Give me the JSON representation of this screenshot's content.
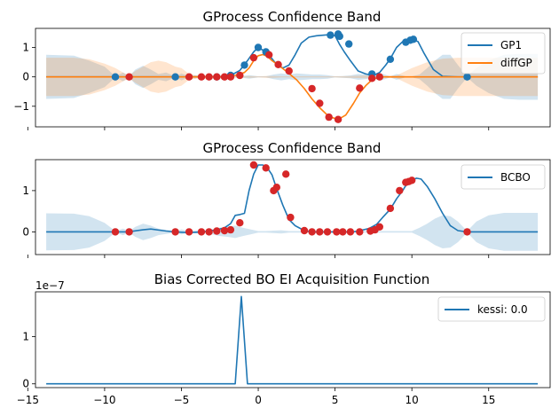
{
  "chart_data": [
    {
      "type": "line",
      "title": "GProcess Confidence Band",
      "xlim": [
        -14.5,
        19.0
      ],
      "ylim": [
        -1.7,
        1.65
      ],
      "yticks": [
        -1,
        0,
        1
      ],
      "yticklabels": [
        "−1",
        "0",
        "1"
      ],
      "legend": "top-right",
      "series": [
        {
          "name": "GP1",
          "color": "#1f77b4",
          "x": [
            -13.8,
            -12,
            -10,
            -9.3,
            -8.4,
            -7,
            -6,
            -5.4,
            -4.5,
            -3.7,
            -3.2,
            -2.7,
            -2.2,
            -1.8,
            -1.2,
            -0.7,
            -0.3,
            0,
            0.5,
            0.8,
            1.2,
            1.6,
            2,
            2.4,
            2.8,
            3.3,
            3.8,
            4.3,
            4.7,
            5.0,
            5.3,
            5.6,
            6.0,
            6.5,
            7.0,
            7.5,
            7.9,
            8.3,
            8.6,
            9.0,
            9.4,
            9.7,
            10.0,
            10.4,
            10.8,
            11.4,
            12,
            13,
            13.6,
            15,
            18.2
          ],
          "y": [
            0,
            0,
            0,
            0,
            0,
            0,
            0,
            0,
            0,
            0,
            0,
            0,
            0,
            0.05,
            0.22,
            0.55,
            0.85,
            1.0,
            0.85,
            0.68,
            0.42,
            0.3,
            0.4,
            0.75,
            1.15,
            1.35,
            1.4,
            1.42,
            1.44,
            1.4,
            1.1,
            0.85,
            0.55,
            0.2,
            0.1,
            0.05,
            0.15,
            0.4,
            0.62,
            1.0,
            1.2,
            1.25,
            1.28,
            1.2,
            0.8,
            0.25,
            0.02,
            0,
            0,
            0,
            0
          ]
        },
        {
          "name": "diffGP",
          "color": "#ff7f0e",
          "x": [
            -13.8,
            -8,
            -4,
            -2.8,
            -2.2,
            -1.5,
            -0.9,
            -0.6,
            -0.3,
            0,
            0.3,
            0.6,
            0.9,
            1.3,
            1.8,
            2.5,
            3,
            3.5,
            4,
            4.6,
            5.2,
            5.7,
            6.2,
            6.6,
            7.0,
            7.4,
            7.8,
            8.2,
            9,
            12,
            18.2
          ],
          "y": [
            0,
            0,
            0,
            0,
            0,
            0.05,
            0.15,
            0.3,
            0.55,
            0.72,
            0.76,
            0.7,
            0.55,
            0.4,
            0.2,
            -0.1,
            -0.4,
            -0.75,
            -1.05,
            -1.35,
            -1.45,
            -1.3,
            -0.9,
            -0.55,
            -0.3,
            -0.1,
            -0.02,
            0,
            0,
            0,
            0
          ]
        }
      ],
      "scatter": [
        {
          "color": "#1f77b4",
          "x": [
            -9.3,
            -5.4,
            -2.7,
            -1.8,
            -0.9,
            0,
            0.5,
            4.7,
            5.2,
            5.3,
            5.9,
            7.4,
            8.6,
            9.6,
            9.9,
            10.1,
            13.6
          ],
          "y": [
            0,
            0,
            0,
            0.05,
            0.4,
            1.0,
            0.85,
            1.42,
            1.46,
            1.38,
            1.12,
            0.1,
            0.6,
            1.18,
            1.25,
            1.28,
            0
          ]
        },
        {
          "color": "#d62728",
          "x": [
            -8.4,
            -4.5,
            -3.7,
            -3.2,
            -2.7,
            -2.2,
            -1.8,
            -1.2,
            -0.3,
            0.7,
            1.3,
            2.0,
            3.5,
            4.0,
            4.6,
            5.2,
            6.6,
            7.4,
            7.9
          ],
          "y": [
            0,
            0,
            0,
            0,
            0,
            0,
            0,
            0.05,
            0.65,
            0.75,
            0.42,
            0.2,
            -0.4,
            -0.9,
            -1.37,
            -1.45,
            -0.38,
            -0.05,
            0
          ]
        }
      ],
      "band": [
        {
          "color": "#1f77b4",
          "x": [
            -13.8,
            -12,
            -11,
            -10,
            -9.3,
            -8.8,
            -8.4,
            -8,
            -7.5,
            -7,
            -6.5,
            -6,
            -5.4,
            -5,
            -4.5,
            -4.1,
            -3.7,
            -3.2,
            -2.7,
            -2.2,
            -1.8,
            -1.2,
            -0.6,
            0,
            0.5,
            1,
            1.5,
            2,
            2.5,
            3,
            3.5,
            4,
            4.5,
            5,
            5.5,
            6,
            6.5,
            7,
            7.5,
            8,
            8.6,
            9,
            9.6,
            10,
            10.5,
            11,
            11.5,
            12,
            12.5,
            13,
            13.6,
            14.2,
            15,
            16,
            17,
            18.2
          ],
          "hw": [
            0.75,
            0.72,
            0.55,
            0.35,
            0.02,
            0.15,
            0.02,
            0.25,
            0.38,
            0.25,
            0.1,
            0.15,
            0.02,
            0.12,
            0.02,
            0.06,
            0.02,
            0.03,
            0.02,
            0.02,
            0.02,
            0.02,
            0.06,
            0.02,
            0.02,
            0.08,
            0.12,
            0.08,
            0.12,
            0.1,
            0.08,
            0.08,
            0.06,
            0.02,
            0.03,
            0.05,
            0.1,
            0.08,
            0.05,
            0.12,
            0.02,
            0.1,
            0.02,
            0.02,
            0.08,
            0.3,
            0.55,
            0.75,
            0.75,
            0.4,
            0.02,
            0.3,
            0.55,
            0.75,
            0.78,
            0.78
          ]
        },
        {
          "color": "#ff7f0e",
          "x": [
            -13.8,
            -12,
            -11,
            -10,
            -9.3,
            -8.8,
            -8.4,
            -8,
            -7.5,
            -7,
            -6.5,
            -6,
            -5.4,
            -5,
            -4.5,
            -4,
            -3.5,
            -3,
            -2.5,
            -2,
            -1.5,
            -1,
            -0.5,
            0,
            0.5,
            1,
            1.5,
            2,
            3,
            4,
            5,
            6,
            7,
            7.5,
            8,
            9,
            10,
            11,
            12,
            13,
            14,
            15,
            16,
            17,
            18.2
          ],
          "hw": [
            0.65,
            0.65,
            0.6,
            0.45,
            0.3,
            0.15,
            0.05,
            0.2,
            0.35,
            0.5,
            0.55,
            0.5,
            0.35,
            0.3,
            0.1,
            0.05,
            0.05,
            0.05,
            0.05,
            0.03,
            0.03,
            0.02,
            0.03,
            0.02,
            0.03,
            0.03,
            0.02,
            0.02,
            0.02,
            0.02,
            0.02,
            0.03,
            0.05,
            0.02,
            0.02,
            0.05,
            0.3,
            0.5,
            0.62,
            0.65,
            0.65,
            0.65,
            0.65,
            0.65,
            0.65
          ]
        }
      ]
    },
    {
      "type": "line",
      "title": "GProcess Confidence Band",
      "xlim": [
        -14.5,
        19.0
      ],
      "ylim": [
        -0.55,
        1.75
      ],
      "yticks": [
        0,
        1
      ],
      "yticklabels": [
        "0",
        "1"
      ],
      "legend": "top-right",
      "series": [
        {
          "name": "BCBO",
          "color": "#1f77b4",
          "x": [
            -13.8,
            -10,
            -9.3,
            -8.5,
            -7.5,
            -7,
            -6,
            -5.4,
            -4.5,
            -3.7,
            -3.2,
            -2.7,
            -2.2,
            -1.8,
            -1.5,
            -1.2,
            -0.9,
            -0.6,
            -0.3,
            0,
            0.3,
            0.6,
            0.9,
            1.2,
            1.6,
            2,
            2.4,
            3,
            3.5,
            4,
            4.6,
            5.2,
            5.7,
            6.2,
            6.6,
            7.2,
            7.7,
            8.1,
            8.6,
            9.0,
            9.4,
            9.7,
            10,
            10.3,
            10.6,
            11,
            11.5,
            12,
            12.5,
            13,
            13.6,
            15,
            18.2
          ],
          "y": [
            0,
            0,
            0,
            0,
            0.05,
            0.07,
            0.02,
            0,
            -0.02,
            0,
            0.02,
            0.05,
            0.1,
            0.2,
            0.4,
            0.42,
            0.45,
            1.0,
            1.4,
            1.62,
            1.62,
            1.55,
            1.38,
            1.05,
            0.65,
            0.3,
            0.15,
            0.03,
            0,
            0,
            0,
            0,
            0,
            0,
            0.03,
            0.08,
            0.18,
            0.35,
            0.55,
            0.8,
            1.0,
            1.18,
            1.25,
            1.3,
            1.28,
            1.1,
            0.8,
            0.45,
            0.15,
            0.03,
            0,
            0,
            0
          ]
        }
      ],
      "scatter": [
        {
          "color": "#d62728",
          "x": [
            -9.3,
            -8.4,
            -5.4,
            -4.5,
            -3.7,
            -3.2,
            -2.7,
            -2.2,
            -1.8,
            -1.2,
            -0.3,
            0.5,
            1.0,
            1.2,
            1.8,
            2.1,
            3.0,
            3.5,
            4.0,
            4.5,
            5.1,
            5.5,
            6.0,
            6.6,
            7.3,
            7.6,
            7.9,
            8.6,
            9.2,
            9.6,
            9.8,
            10.0,
            13.6
          ],
          "y": [
            0,
            0,
            0,
            0,
            0,
            0,
            0.02,
            0.03,
            0.05,
            0.22,
            1.62,
            1.55,
            1.0,
            1.08,
            1.4,
            0.35,
            0.03,
            0,
            0,
            0,
            0,
            0,
            0,
            0,
            0.02,
            0.05,
            0.12,
            0.57,
            1.0,
            1.2,
            1.22,
            1.25,
            0
          ]
        }
      ],
      "band": [
        {
          "color": "#1f77b4",
          "x": [
            -13.8,
            -12,
            -11,
            -10,
            -9.3,
            -8.8,
            -8.4,
            -8,
            -7.5,
            -7,
            -6.5,
            -6,
            -5.4,
            -5,
            -4.5,
            -4,
            -3.5,
            -3,
            -2.5,
            -2,
            -1.5,
            -1,
            -0.5,
            0,
            0.5,
            1,
            1.5,
            2,
            3,
            4,
            5,
            6,
            7,
            8,
            8.6,
            9.2,
            10,
            10.5,
            11,
            11.5,
            12,
            12.5,
            13,
            13.6,
            14.2,
            15,
            16,
            17,
            18.2
          ],
          "hw": [
            0.45,
            0.44,
            0.38,
            0.22,
            0.02,
            0.08,
            0.02,
            0.12,
            0.2,
            0.15,
            0.08,
            0.05,
            0.02,
            0.06,
            0.02,
            0.04,
            0.02,
            0.06,
            0.1,
            0.12,
            0.15,
            0.1,
            0.06,
            0.02,
            0.02,
            0.03,
            0.04,
            0.02,
            0.02,
            0.02,
            0.02,
            0.02,
            0.02,
            0.02,
            0.02,
            0.02,
            0.02,
            0.1,
            0.2,
            0.32,
            0.4,
            0.38,
            0.25,
            0.02,
            0.25,
            0.4,
            0.46,
            0.46,
            0.46
          ]
        }
      ]
    },
    {
      "type": "line",
      "title": "Bias Corrected BO EI Acquisition Function",
      "xlim": [
        -14.5,
        19.0
      ],
      "ylim": [
        -0.08,
        1.95
      ],
      "yticks": [
        0,
        1
      ],
      "yticklabels": [
        "0",
        "1"
      ],
      "scale_label": "1e−7",
      "xticks": [
        -15,
        -10,
        -5,
        0,
        5,
        10,
        15
      ],
      "xticklabels": [
        "−15",
        "−10",
        "−5",
        "0",
        "5",
        "10",
        "15"
      ],
      "legend": "top-right",
      "series": [
        {
          "name": "kessi: 0.0",
          "color": "#1f77b4",
          "x": [
            -13.8,
            -1.5,
            -1.1,
            -0.7,
            18.2
          ],
          "y": [
            0,
            0,
            1.85,
            0,
            0
          ]
        }
      ]
    }
  ]
}
